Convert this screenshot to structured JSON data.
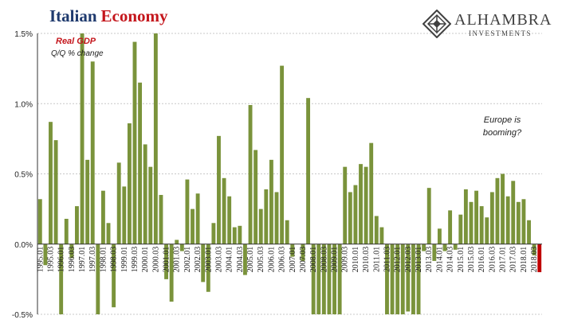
{
  "header": {
    "title_part1": "Italian",
    "title_part2": "Economy"
  },
  "logo": {
    "name": "ALHAMBRA",
    "subtitle": "INVESTMENTS"
  },
  "colors": {
    "positive": "#7a933b",
    "latest": "#c00000",
    "title_blue": "#1f3a6e",
    "title_red": "#c4161c"
  },
  "chart_data": {
    "type": "bar",
    "title": "Italian Economy",
    "series_label": "Real GDP",
    "series_sublabel": "Q/Q % change",
    "annotation": "Europe is booming?",
    "ylim": [
      -0.5,
      1.5
    ],
    "yticks": [
      "1.5%",
      "1.0%",
      "0.5%",
      "0.0%",
      "-0.5%"
    ],
    "ytick_values": [
      1.5,
      1.0,
      0.5,
      0.0,
      -0.5
    ],
    "grid": true,
    "xlabels": [
      "1995.01",
      "1995.03",
      "1996.01",
      "1996.03",
      "1997.01",
      "1997.03",
      "1998.01",
      "1998.03",
      "1999.01",
      "1999.03",
      "2000.01",
      "2000.03",
      "2001.01",
      "2001.03",
      "2002.01",
      "2002.03",
      "2003.01",
      "2003.03",
      "2004.01",
      "2004.03",
      "2005.01",
      "2005.03",
      "2006.01",
      "2006.03",
      "2007.01",
      "2007.03",
      "2008.01",
      "2008.03",
      "2009.01",
      "2009.03",
      "2010.01",
      "2010.03",
      "2011.01",
      "2011.03",
      "2012.01",
      "2012.03",
      "2013.01",
      "2013.03",
      "2014.01",
      "2014.03",
      "2015.01",
      "2015.03",
      "2016.01",
      "2016.03",
      "2017.01",
      "2017.03",
      "2018.01",
      "2018.03"
    ],
    "values": [
      0.32,
      -0.15,
      0.87,
      0.74,
      -0.5,
      0.18,
      -0.1,
      0.27,
      1.5,
      0.6,
      1.3,
      -0.5,
      0.38,
      0.15,
      -0.45,
      0.58,
      0.41,
      0.86,
      1.44,
      1.15,
      0.71,
      0.55,
      1.5,
      0.35,
      -0.25,
      -0.41,
      0.03,
      -0.05,
      0.46,
      0.25,
      0.36,
      -0.27,
      -0.34,
      0.15,
      0.77,
      0.47,
      0.34,
      0.12,
      0.13,
      -0.22,
      0.99,
      0.67,
      0.25,
      0.39,
      0.6,
      0.37,
      1.27,
      0.17,
      -0.09,
      0.0,
      -0.12,
      1.04,
      -0.5,
      -0.5,
      -0.5,
      -0.5,
      -0.5,
      -0.5,
      0.55,
      0.37,
      0.42,
      0.57,
      0.55,
      0.72,
      0.2,
      0.12,
      -0.5,
      -0.5,
      -0.5,
      -0.5,
      -0.48,
      -0.5,
      -0.5,
      -0.05,
      0.4,
      -0.12,
      0.11,
      -0.05,
      0.24,
      -0.04,
      0.21,
      0.39,
      0.3,
      0.38,
      0.27,
      0.19,
      0.37,
      0.47,
      0.5,
      0.34,
      0.45,
      0.3,
      0.32,
      0.17,
      -0.08,
      -0.2
    ]
  }
}
